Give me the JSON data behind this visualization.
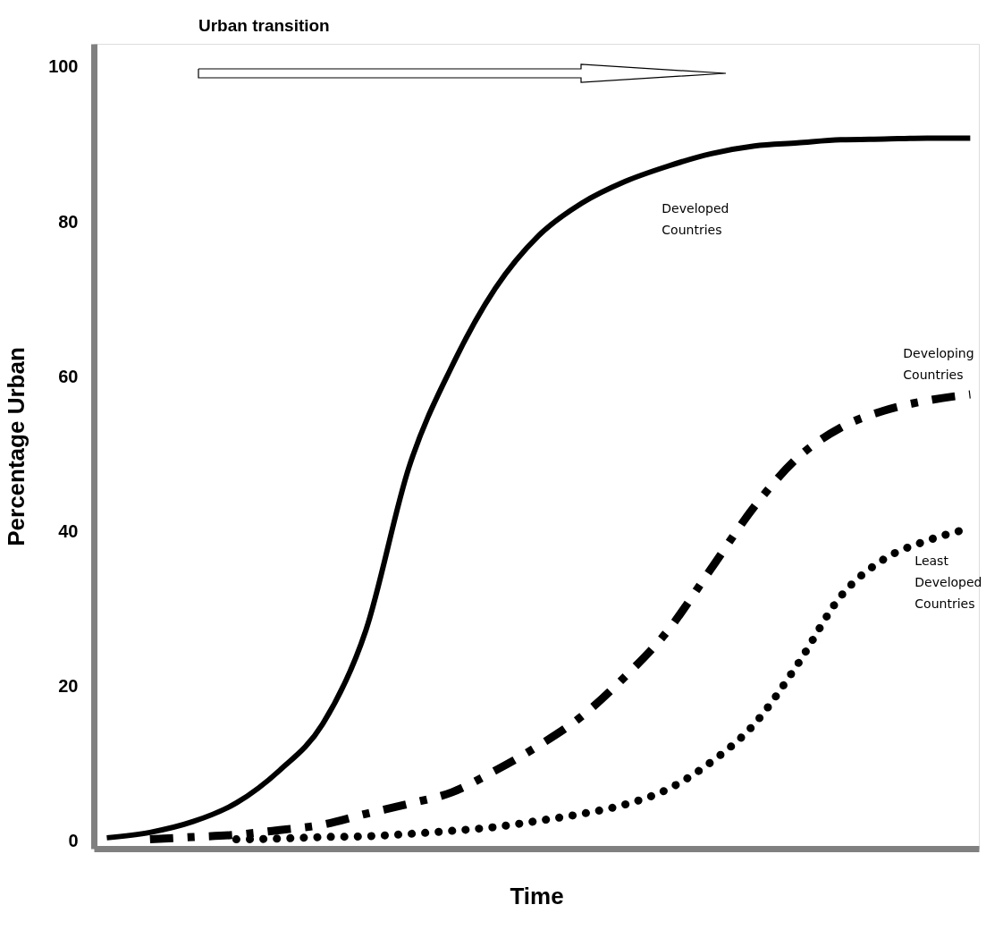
{
  "chart_data": {
    "type": "line",
    "ylabel": "Percentage Urban",
    "xlabel": "Time",
    "annotations": [
      "Urban transition"
    ],
    "categories": [
      null,
      null,
      null,
      null,
      null,
      null,
      null,
      null,
      null,
      null,
      null,
      null,
      null,
      null,
      null,
      null,
      null,
      null,
      null,
      null,
      null
    ],
    "ylim": [
      -1,
      103
    ],
    "yticks": [
      0,
      20,
      40,
      60,
      80,
      100
    ],
    "grid": false,
    "marker": "none",
    "series": [
      {
        "name": "Developed Countries",
        "color": "#000000",
        "line_style": "solid",
        "values": [
          0.4,
          1.1,
          2.5,
          4.9,
          9.1,
          15.1,
          27.2,
          48.3,
          61.4,
          71.4,
          78.2,
          82.4,
          85.2,
          87.2,
          88.8,
          89.8,
          90.2,
          90.6,
          90.7,
          90.8,
          90.8
        ]
      },
      {
        "name": "Developing Countries",
        "color": "#000000",
        "line_style": "dashed",
        "values": [
          null,
          0.2,
          0.5,
          0.8,
          1.4,
          2.1,
          3.5,
          4.8,
          6.3,
          9.1,
          12.3,
          16.1,
          21.2,
          27.2,
          35.2,
          43.2,
          49.5,
          53.4,
          55.6,
          56.9,
          57.7
        ]
      },
      {
        "name": "Least Developed Countries",
        "color": "#000000",
        "line_style": "dotted",
        "values": [
          null,
          null,
          null,
          0.2,
          0.3,
          0.5,
          0.6,
          0.9,
          1.3,
          1.8,
          2.6,
          3.5,
          4.7,
          6.7,
          10.2,
          15.1,
          22.8,
          31.6,
          36.4,
          38.8,
          40.4
        ]
      }
    ]
  }
}
